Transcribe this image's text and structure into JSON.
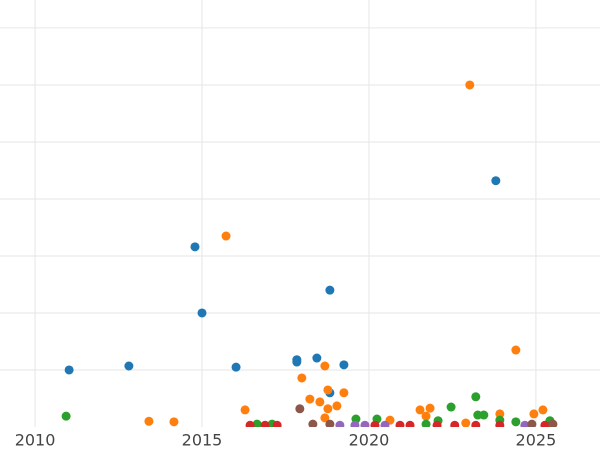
{
  "chart_data": {
    "type": "scatter",
    "xlim": [
      2008.95,
      2026.92
    ],
    "xticks": [
      2010,
      2015,
      2020,
      2025
    ],
    "ylim": [
      0,
      7.49
    ],
    "yticks": [
      1,
      2,
      3,
      4,
      5,
      6,
      7
    ],
    "grid": true,
    "series": [
      {
        "color": "#1f77b4",
        "x": [
          2011.02,
          2012.81,
          2014.79,
          2015.0,
          2016.02,
          2017.84,
          2017.84,
          2018.44,
          2018.83,
          2018.83,
          2019.25,
          2023.8
        ],
        "values": [
          1.0,
          1.07,
          3.16,
          2.0,
          1.05,
          1.18,
          1.14,
          1.21,
          2.4,
          0.6,
          1.09,
          4.32
        ]
      },
      {
        "color": "#ff7f0e",
        "x": [
          2023.02,
          2015.72,
          2024.4,
          2013.41,
          2014.16,
          2016.29,
          2017.99,
          2018.68,
          2018.23,
          2018.53,
          2018.77,
          2018.77,
          2019.04,
          2019.25,
          2018.68,
          2020.63,
          2021.53,
          2021.83,
          2021.71,
          2022.9,
          2023.92,
          2024.94,
          2025.21
        ],
        "values": [
          6.0,
          3.35,
          1.35,
          0.1,
          0.09,
          0.3,
          0.86,
          1.07,
          0.49,
          0.44,
          0.65,
          0.32,
          0.37,
          0.6,
          0.16,
          0.12,
          0.3,
          0.33,
          0.19,
          0.07,
          0.23,
          0.23,
          0.3
        ]
      },
      {
        "color": "#2ca02c",
        "x": [
          2010.93,
          2016.65,
          2017.1,
          2019.61,
          2020.24,
          2022.07,
          2022.46,
          2023.2,
          2023.26,
          2023.44,
          2023.92,
          2024.4,
          2025.42,
          2021.71
        ],
        "values": [
          0.19,
          0.05,
          0.05,
          0.14,
          0.14,
          0.11,
          0.35,
          0.53,
          0.21,
          0.21,
          0.12,
          0.09,
          0.11,
          0.05
        ]
      },
      {
        "color": "#d62728",
        "x": [
          2016.44,
          2016.89,
          2017.25,
          2020.18,
          2020.93,
          2021.23,
          2022.04,
          2022.57,
          2023.2,
          2023.92,
          2025.27
        ],
        "values": [
          0.03,
          0.03,
          0.03,
          0.03,
          0.03,
          0.03,
          0.03,
          0.03,
          0.03,
          0.03,
          0.03
        ]
      },
      {
        "color": "#9467bd",
        "x": [
          2019.13,
          2019.58,
          2019.88,
          2020.48,
          2024.67
        ],
        "values": [
          0.03,
          0.03,
          0.03,
          0.03,
          0.03
        ]
      },
      {
        "color": "#8c564b",
        "x": [
          2017.93,
          2018.32,
          2018.83,
          2024.88,
          2025.51
        ],
        "values": [
          0.32,
          0.05,
          0.05,
          0.05,
          0.05
        ]
      }
    ]
  }
}
